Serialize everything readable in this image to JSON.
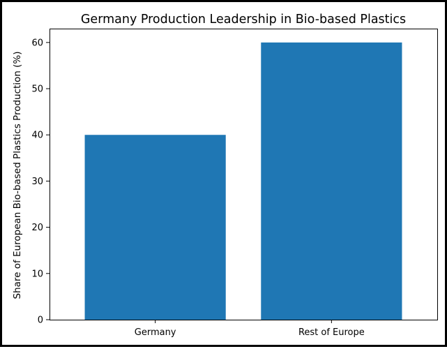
{
  "chart_data": {
    "type": "bar",
    "title": "Germany Production Leadership in Bio-based Plastics",
    "xlabel": "",
    "ylabel": "Share of European Bio-based Plastics Production (%)",
    "categories": [
      "Germany",
      "Rest of Europe"
    ],
    "values": [
      40,
      60
    ],
    "ylim": [
      0,
      63
    ],
    "yticks": [
      0,
      10,
      20,
      30,
      40,
      50,
      60
    ],
    "bar_color": "#1f77b4",
    "grid": false,
    "legend": "none"
  }
}
